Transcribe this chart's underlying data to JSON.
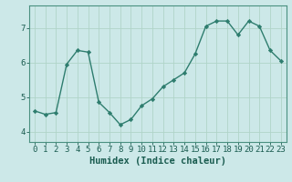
{
  "x": [
    0,
    1,
    2,
    3,
    4,
    5,
    6,
    7,
    8,
    9,
    10,
    11,
    12,
    13,
    14,
    15,
    16,
    17,
    18,
    19,
    20,
    21,
    22,
    23
  ],
  "y": [
    4.6,
    4.5,
    4.55,
    5.95,
    6.35,
    6.3,
    4.85,
    4.55,
    4.2,
    4.35,
    4.75,
    4.95,
    5.3,
    5.5,
    5.7,
    6.25,
    7.05,
    7.2,
    7.2,
    6.8,
    7.2,
    7.05,
    6.35,
    6.05
  ],
  "xlabel": "Humidex (Indice chaleur)",
  "bg_color": "#cce8e8",
  "grid_color": "#b0d4c8",
  "line_color": "#2e7d6e",
  "marker_color": "#2e7d6e",
  "ylim": [
    3.7,
    7.65
  ],
  "xlim": [
    -0.5,
    23.5
  ],
  "yticks": [
    4,
    5,
    6,
    7
  ],
  "xticks": [
    0,
    1,
    2,
    3,
    4,
    5,
    6,
    7,
    8,
    9,
    10,
    11,
    12,
    13,
    14,
    15,
    16,
    17,
    18,
    19,
    20,
    21,
    22,
    23
  ],
  "tick_label_size": 6.5,
  "xlabel_size": 7.5,
  "tick_color": "#1a5c50",
  "spine_color": "#4a9080"
}
